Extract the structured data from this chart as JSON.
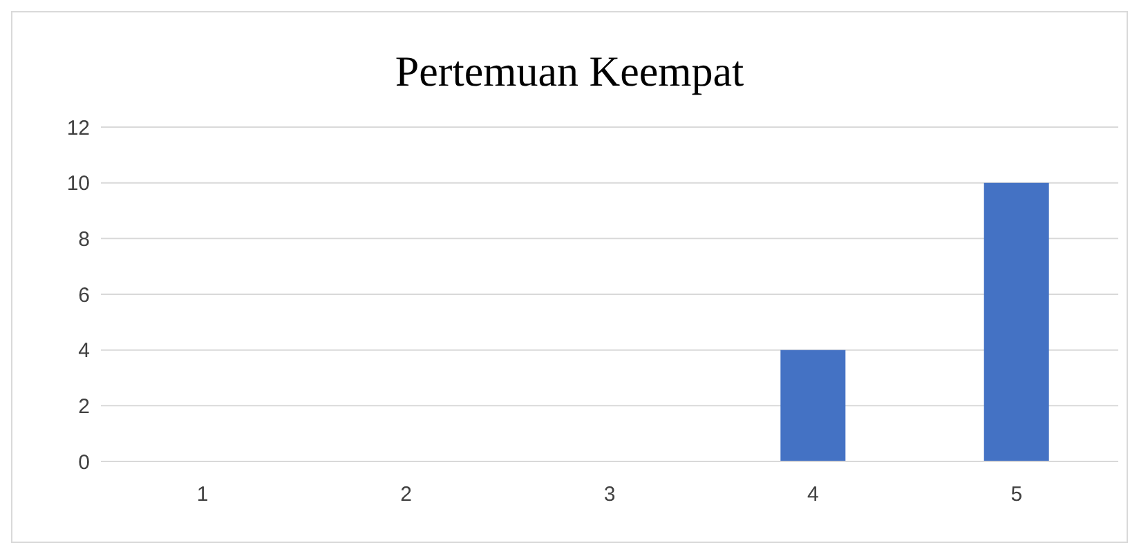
{
  "chart_data": {
    "type": "bar",
    "title": "Pertemuan Keempat",
    "categories": [
      "1",
      "2",
      "3",
      "4",
      "5"
    ],
    "values": [
      0,
      0,
      0,
      4,
      10
    ],
    "color": "#4472c4",
    "ylim": [
      0,
      12
    ],
    "yticks": [
      0,
      2,
      4,
      6,
      8,
      10,
      12
    ],
    "grid": "y"
  }
}
